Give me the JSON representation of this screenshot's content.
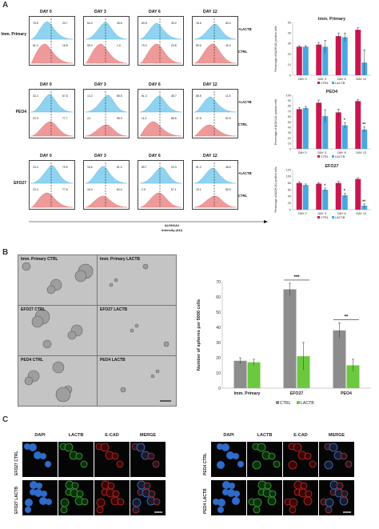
{
  "panels": {
    "a": "A",
    "b": "B",
    "c": "C"
  },
  "panel_a": {
    "days": [
      "DAY 0",
      "DAY 3",
      "DAY 6",
      "DAY 12"
    ],
    "rows": [
      {
        "label": "Imm. Primary",
        "lactb": "+LACTB",
        "ctrl": "CTRL",
        "stats": [
          [
            "76.5",
            "23.7",
            "81.2",
            "18.8"
          ],
          [
            "54.4",
            "45.6",
            "99.0",
            "1.0"
          ],
          [
            "60.8",
            "39.2",
            "79.2",
            "20.8"
          ],
          [
            "16.6",
            "83.4",
            "59.6",
            "40.4"
          ]
        ]
      },
      {
        "label": "PEO4",
        "lactb": "+LACTB",
        "ctrl": "CTRL",
        "stats": [
          [
            "32.2",
            "67.8",
            "22.3",
            "77.7"
          ],
          [
            "14.2",
            "85.8",
            "4.1",
            "95.9"
          ],
          [
            "51.3",
            "48.7",
            "11.2",
            "88.8"
          ],
          [
            "88.5",
            "11.5",
            "47.5",
            "52.5"
          ]
        ]
      },
      {
        "label": "EFO27",
        "lactb": "+LACTB",
        "ctrl": "CTRL",
        "stats": [
          [
            "20.4",
            "79.6",
            "22.4",
            "77.6"
          ],
          [
            "18.6",
            "81.4",
            "16.0",
            "84.0"
          ],
          [
            "89.7",
            "10.3",
            "2.9",
            "97.1"
          ],
          [
            "51.2",
            "48.8",
            "19.1",
            "80.9"
          ]
        ]
      }
    ],
    "x_axis_label_1": "ALDH1A1",
    "x_axis_label_2": "Intensity (AU)"
  },
  "chart_data": [
    {
      "type": "bar",
      "title": "Imm. Primary",
      "ylabel": "Percentage of ALDH1A1 positive cells",
      "categories": [
        "DAY 0",
        "DAY 3",
        "DAY 6",
        "DAY 12"
      ],
      "ylim": [
        0,
        50
      ],
      "ticks": [
        0,
        10,
        20,
        30,
        40,
        50
      ],
      "series": [
        {
          "name": "CTRL",
          "color": "#c8174f",
          "values": [
            27,
            29,
            37,
            43
          ],
          "err": [
            1,
            2,
            3,
            2
          ]
        },
        {
          "name": "LACTB",
          "color": "#4aa6e0",
          "values": [
            27,
            27,
            36,
            12
          ],
          "err": [
            1,
            6,
            4,
            12
          ]
        }
      ],
      "sig": [
        "",
        "",
        "",
        ""
      ],
      "legend": "bottom"
    },
    {
      "type": "bar",
      "title": "PEO4",
      "ylabel": "Percentage of ALDH1A1 positive cells",
      "categories": [
        "DAY 0",
        "DAY 3",
        "DAY 6",
        "DAY 12"
      ],
      "ylim": [
        0,
        100
      ],
      "ticks": [
        0,
        10,
        20,
        30,
        40,
        50,
        60,
        70,
        80,
        90,
        100
      ],
      "series": [
        {
          "name": "CTRL",
          "color": "#c8174f",
          "values": [
            74,
            86,
            68,
            89
          ],
          "err": [
            3,
            5,
            6,
            3
          ]
        },
        {
          "name": "LACTB",
          "color": "#4aa6e0",
          "values": [
            76,
            61,
            44,
            36
          ],
          "err": [
            3,
            12,
            5,
            5
          ]
        }
      ],
      "sig": [
        "",
        "",
        "*",
        "**"
      ],
      "legend": "bottom"
    },
    {
      "type": "bar",
      "title": "EFO27",
      "ylabel": "Percentage of ALDH1A1 positive cells",
      "categories": [
        "DAY 0",
        "DAY 3",
        "DAY 6",
        "DAY 12"
      ],
      "ylim": [
        0,
        120
      ],
      "ticks": [
        0,
        20,
        40,
        60,
        80,
        100,
        120
      ],
      "series": [
        {
          "name": "CTRL",
          "color": "#c8174f",
          "values": [
            80,
            78,
            80,
            92
          ],
          "err": [
            4,
            3,
            5,
            4
          ]
        },
        {
          "name": "LACTB",
          "color": "#4aa6e0",
          "values": [
            74,
            60,
            43,
            12
          ],
          "err": [
            3,
            5,
            6,
            5
          ]
        }
      ],
      "sig": [
        "",
        "*",
        "*",
        "**"
      ],
      "legend": "bottom"
    },
    {
      "type": "bar",
      "title": "",
      "ylabel": "Number of spheres per 5000 cells",
      "categories": [
        "Imm. Primary",
        "EFO27",
        "PEO4"
      ],
      "ylim": [
        0,
        70
      ],
      "ticks": [
        0,
        10,
        20,
        30,
        40,
        50,
        60,
        70
      ],
      "series": [
        {
          "name": "CTRL",
          "color": "#8c8c8c",
          "values": [
            18,
            65,
            38
          ],
          "err": [
            2,
            4,
            5
          ]
        },
        {
          "name": "LACTB",
          "color": "#6bc83f",
          "values": [
            17,
            21,
            15
          ],
          "err": [
            2,
            9,
            4
          ]
        }
      ],
      "sig": [
        "",
        "***",
        "**"
      ],
      "legend": "bottom"
    }
  ],
  "panel_b": {
    "images": [
      "Imm. Primary CTRL",
      "Imm. Primary LACTB",
      "EFO27 CTRL",
      "EFO27 LACTB",
      "PEO4 CTRL",
      "PEO4 LACTB"
    ]
  },
  "panel_c": {
    "headers": [
      "DAPI",
      "LACTB",
      "E-CAD",
      "MERGE"
    ],
    "rows_left": [
      "EFO27 CTRL",
      "EFO27 LACTB"
    ],
    "rows_right": [
      "PEO4 CTRL",
      "PEO4 LACTB"
    ]
  }
}
